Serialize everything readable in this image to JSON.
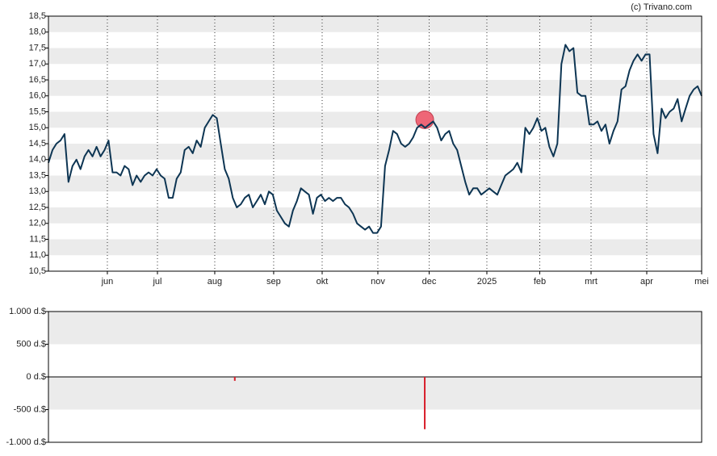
{
  "chart_data": [
    {
      "type": "line",
      "source": "(c) Trivano.com",
      "color": "#0d3553",
      "values": [
        13.9,
        14.3,
        14.5,
        14.6,
        14.8,
        13.3,
        13.8,
        14.0,
        13.7,
        14.1,
        14.3,
        14.1,
        14.4,
        14.1,
        14.3,
        14.6,
        13.6,
        13.6,
        13.5,
        13.8,
        13.7,
        13.2,
        13.5,
        13.3,
        13.5,
        13.6,
        13.5,
        13.7,
        13.5,
        13.4,
        12.8,
        12.8,
        13.4,
        13.6,
        14.3,
        14.4,
        14.2,
        14.6,
        14.4,
        15.0,
        15.2,
        15.4,
        15.3,
        14.5,
        13.7,
        13.4,
        12.8,
        12.5,
        12.6,
        12.8,
        12.9,
        12.5,
        12.7,
        12.9,
        12.6,
        13.0,
        12.9,
        12.4,
        12.2,
        12.0,
        11.9,
        12.4,
        12.7,
        13.1,
        13.0,
        12.9,
        12.3,
        12.8,
        12.9,
        12.7,
        12.8,
        12.7,
        12.8,
        12.8,
        12.6,
        12.5,
        12.3,
        12.0,
        11.9,
        11.8,
        11.9,
        11.7,
        11.7,
        11.9,
        13.8,
        14.3,
        14.9,
        14.8,
        14.5,
        14.4,
        14.5,
        14.7,
        15.0,
        15.1,
        15.0,
        15.1,
        15.2,
        15.0,
        14.6,
        14.8,
        14.9,
        14.5,
        14.3,
        13.8,
        13.3,
        12.9,
        13.1,
        13.1,
        12.9,
        13.0,
        13.1,
        13.0,
        12.9,
        13.2,
        13.5,
        13.6,
        13.7,
        13.9,
        13.6,
        15.0,
        14.8,
        15.0,
        15.3,
        14.9,
        15.0,
        14.4,
        14.1,
        14.5,
        17.0,
        17.6,
        17.4,
        17.5,
        16.1,
        16.0,
        16.0,
        15.1,
        15.1,
        15.2,
        14.9,
        15.1,
        14.5,
        14.9,
        15.2,
        16.2,
        16.3,
        16.8,
        17.1,
        17.3,
        17.1,
        17.3,
        17.3,
        14.8,
        14.2,
        15.6,
        15.3,
        15.5,
        15.6,
        15.9,
        15.2,
        15.6,
        16.0,
        16.2,
        16.3,
        16.0
      ],
      "xlim": [
        0,
        163
      ],
      "xticks": [
        {
          "value": 14.7,
          "label": "jun"
        },
        {
          "value": 27.2,
          "label": "jul"
        },
        {
          "value": 41.5,
          "label": "aug"
        },
        {
          "value": 56.2,
          "label": "sep"
        },
        {
          "value": 68.3,
          "label": "okt"
        },
        {
          "value": 82.2,
          "label": "nov"
        },
        {
          "value": 95.0,
          "label": "dec"
        },
        {
          "value": 109.4,
          "label": "2025"
        },
        {
          "value": 122.6,
          "label": "feb"
        },
        {
          "value": 135.4,
          "label": "mrt"
        },
        {
          "value": 149.3,
          "label": "apr"
        },
        {
          "value": 163,
          "label": "mei"
        }
      ],
      "ylim": [
        10.5,
        18.5
      ],
      "yticks": [
        {
          "value": 10.5,
          "label": "10,5"
        },
        {
          "value": 11,
          "label": "11,0"
        },
        {
          "value": 11.5,
          "label": "11,5"
        },
        {
          "value": 12,
          "label": "12,0"
        },
        {
          "value": 12.5,
          "label": "12,5"
        },
        {
          "value": 13,
          "label": "13,0"
        },
        {
          "value": 13.5,
          "label": "13,5"
        },
        {
          "value": 14,
          "label": "14,0"
        },
        {
          "value": 14.5,
          "label": "14,5"
        },
        {
          "value": 15,
          "label": "15,0"
        },
        {
          "value": 15.5,
          "label": "15,5"
        },
        {
          "value": 16,
          "label": "16,0"
        },
        {
          "value": 16.5,
          "label": "16,5"
        },
        {
          "value": 17,
          "label": "17,0"
        },
        {
          "value": 17.5,
          "label": "17,5"
        },
        {
          "value": 18,
          "label": "18,0"
        },
        {
          "value": 18.5,
          "label": "18,5"
        }
      ],
      "highlight": {
        "x": 93.9,
        "y": 15.25,
        "color": "#ee6677"
      }
    },
    {
      "type": "bar",
      "color": "#d81e2a",
      "x": [
        46.5,
        93.9
      ],
      "values": [
        -60,
        -800
      ],
      "xlim": [
        0,
        163
      ],
      "ylim": [
        -1000,
        1000
      ],
      "yticks": [
        {
          "value": 1000,
          "label": "1.000 d.$"
        },
        {
          "value": 500,
          "label": "500 d.$"
        },
        {
          "value": 0,
          "label": "0 d.$"
        },
        {
          "value": -500,
          "label": "-500 d.$"
        },
        {
          "value": -1000,
          "label": "-1.000 d.$"
        }
      ]
    }
  ]
}
